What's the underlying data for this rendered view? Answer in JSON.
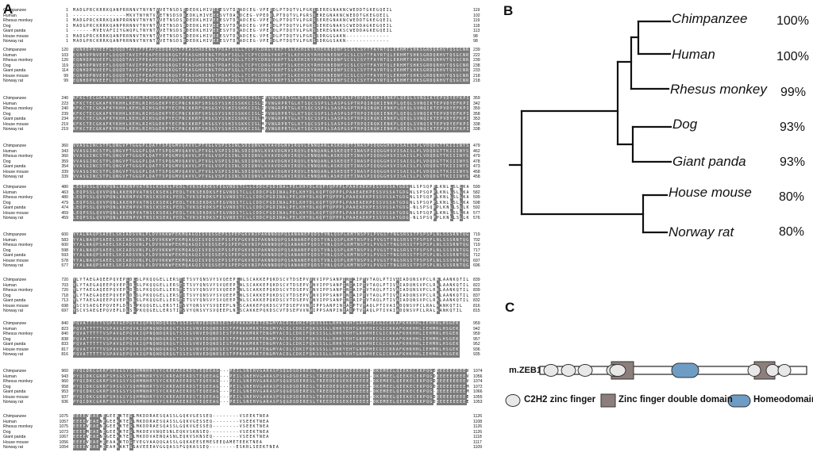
{
  "panels": {
    "a": "A",
    "b": "B",
    "c": "C"
  },
  "alignment": {
    "species": [
      "Chimpanzee",
      "Human",
      "Rhesus monkey",
      "Dog",
      "Giant panda",
      "House mouse",
      "Norway rat"
    ],
    "blocks": [
      {
        "starts": [
          "1",
          "1",
          "1",
          "1",
          "1",
          "1",
          "1"
        ],
        "ends": [
          "119",
          "102",
          "119",
          "118",
          "113",
          "98",
          "98"
        ],
        "seq": [
          "MADGPRCKRRKQANPRRNNVTNYNTVVETNSDSDDEDKLHIVEEESVTDAADCEG-VPEDDLPTDQTVLPGRSSEREGNAKNCWEDDTGKEGQEIL",
          "----------------MKVTNYNTVVETNSDSDDEDKLHIVEEESVTDAADCEG-VPEDDLPTDQTVLPGRSSEREGNAKNCWEDDTGKEGQEIL",
          "MADGPRCKRRKQANPRRNNVTNYNTVVETNSDSDDEDKLHIVEEESVTDAADCEG-VPEDDLPTDQTVLPGRSSEREGNAKNCWEDDTGKEGQEIL",
          "MADGPRCKRRKQANPRRNNVTNYNTVVETNSDSDDEDKLHIVEEESVTDAADCEG-VPEDDLPTDQTVLPGRSSEREGNAKSCWEDDAGKEGQEIL",
          "------MVEVAFIIYGWQPLTNYNTVVETNSDSDDEDKLHIVEEESVTDAADCEG-VPEDDLPTDQTVLPGRSSEREGNAKSCWEDDAGKEGQEIL",
          "MADGPRCKRRKQANPRRNNVTNYNTVVETNSDSDDEDKLHIVEEESVTDAADCEG-VPEDDLPTDQTVLPGRSSDRGGGAKN-------------",
          "MADGPRCKRRKQANPRRNNVTNYNTVVETNSDSDDEDKLHIVEEESVTDAADCEG-VPEDDLPTDQTVLPGRSSDRGGSAKN-------------"
        ]
      },
      {
        "starts": [
          "120",
          "103",
          "120",
          "119",
          "114",
          "99",
          "99"
        ],
        "ends": [
          "239",
          "222",
          "239",
          "238",
          "233",
          "218",
          "218"
        ],
        "seq": [
          "EQNHDPNVEEFLQQQDTAVIFPEAPEEDQRQGTPEASGHDENGTPDAFSQLLTCPYCDRGYKRFTSLKEHIKYRHEKNEDNFSCSLCSYTFAYRTQLERHMTSHKSGRDQRHVTQSGCNR",
          "EQNHDPNVEEFLQQQDTAVIFPEAPEEDQRQGTPEASGHDENGTPDAFSQLLTCPYCDRGYKRFTSLKEHIKYRHEKNEDNFSCSLCSYTFAYRTQLERHMTSHKSGRDQRHVTQSGCNR",
          "EQNHDPNVEEFLQQQDTAVIFPEAPEEDQRQGTPEASGHDENGTPDAFSQLLTCPYCDRGYKRFTSLKEHIKYRHEKNEDNFSCSLCSYTFAYRTQLERHMTSHKSGRDQRHVTQSGCNR",
          "EQNHDPNVEEFLQQQDTAVIFPEAPEEDQRQGTPEASGHDENGTPDAFSQLLTCPYCDRGYKRFTSLKEHIKYRHEKNEDNFSCSLCSYTFAYRTQLERHMTSHKSGRDQRHVTQSGCNR",
          "EQNHDPNVEEFLQQQDTAVIFPEAPEEDQRQGTPEASGHDENGTPDAFSQLLTCPYCDRGYKRFTSLKEHIKYRHEKNEDNFSCSLCSYTFAYRTQLERHMTSHKSGRDQRHVTQSGCNR",
          "EQNHDPNVEEFLQQQDTAVIFPEAPEEDQRQGTPEASGHDENGTPDAFSQLLTCPYCDRGYKRFTSLKEHIKYRHEKNEDNFSCSLCSYTFAYRTQLERHMTSHKSGRDQRHVTQSGCNR",
          "EQNHDPNVEEFLQQQDTAVIFPEAPEEDQRQGTPEASGHDENGTPDAFSQLLTCPYCDRGYKRFTSLKEHIKYRHEKNEDNFSCSLCSYTFAYRTQLERHMTSHKSGRDQRHVTQSGCNR"
        ]
      },
      {
        "starts": [
          "240",
          "223",
          "240",
          "239",
          "234",
          "219",
          "219"
        ],
        "ends": [
          "359",
          "342",
          "359",
          "358",
          "353",
          "338",
          "338"
        ],
        "seq": [
          "KFKCTECGKAFKYKHHLKEHLRIHSGEKPYECPNCKKRFSHSGSYSSHISSKKCISLIPVNGRPRTGLKTSQCSSPSLSASPGSPTRPQIRQKIENKPLQEQLSVNQIKTEPVDYEFKPI",
          "KFKCTECGKAFKYKHHLKEHLRIHSGEKPYECPNCKKRFSHSGSYSSHISSKKCISLIPVNGRPRTGLKTSQCSSPSLSASPGSPTRPQIRQKIENKPLQEQLSVNQIKTEPVDYEFKPI",
          "KFKCTECGKAFKYKHHLKEHLRIHSGEKPYECPNCKKRFSHSGSYSSHISSKKCISLIPVNGRPRTGLKTSQCSSPSLSASPGSPTRPQIRQKIENKPLQEQLSVNQIKTEPVDYEFKPI",
          "KFKCTECGKAFKYKHHLKEHLRIHSGEKPYECPNCKKRFSHSGSYSSHISSKKCISLIPVNGRPRTGLKTSQCSSPSLSASPGSPTRPQIRQKIENKPLQEQLSVNQIKTEPVDYEFKPI",
          "KFKCTECGKAFKYKHHLKEHLRIHSGEKPYECPNCKKRFSHSGSYSSHISSKKCISLMPVNGRPRTGLKTSQCSSPSLSASPGSPTRPQIRQKIENKPLQEQLSVNQIKTEPVDYEFKPI",
          "KFKCTECGKAFKYKHHLKEHLRIHSGEKPYECPNCKKRFSHSGSYSSHISSKKCISLMPVNGRPRTGLKTSQCSSPSLSASPGSPTRPQIRQKIENKPLQEQLSVNQIKTEPVDYEFKPI",
          "KFKCTECGKAFKYKHHLKEHLRIHSGEKPYECPNCKKRFSHSGSYSSHISSKKCISLMPVNGRPRTGLKTSQCSSPSLSASPGSPTRPQIRQKIENKPLQEQLSVNQIKTEPVDYEFKPI"
        ]
      },
      {
        "starts": [
          "360",
          "343",
          "360",
          "359",
          "354",
          "339",
          "339"
        ],
        "ends": [
          "479",
          "462",
          "479",
          "478",
          "473",
          "458",
          "458"
        ],
        "seq": [
          "VVASGINCSTPLQNGVFTGGGPLQATTSPQGMVQAVVLPTVGLVSPISINLSDIQNVLKVAVDGNVIRQVLENNQANLASKEQETINASPIQQGGHSVISAISLPLVDQDGTTKIIINYS",
          "VVASGINCSTPLQNGVFTGGGPLQATTSPQGMVQAVVLPTVGLVSPISINLSDIQNVLKVAVDGNVIRQVLENNQANLASKEQETINASPIQQGGHSVISAISLPLVDQDGTTKIIINYS",
          "VVASGINCSTPLQNGVFTGGGPLQATTSPQGMVQAVVLPTVGLVSPISINLSDIQNVLKVAVDGNVIRQVLENNQANLASKEQETINASPIQQGGHSVISAISLPLVDQDGTTKIIINYS",
          "VVASGINCSTPLQNGVFTGGGPLQATTSPQGMVQAVVLPTVGLVSPISINLSDIQNVLKVAVDGNVIRQVLENNQANLASKEQETINASPIQQGGHSVISAISLPLVDQDGTTKIIINYS",
          "VVASGINCSTPLQNGVFTGGGPLQATTSPQGMVQAVVLPTVGLVSPISINLSDIQNVLKVAVDGNVIRQVLENNQANLASKEQETINASPIQQGGHSVISAISLPLVDQDGTTKIIINYS",
          "VVASGINCSTPLQNGVFTGGGPLQATTSPQGMVQAVVLPTVGLVSPISINLSDIQNVLKVAVDGNVIRQVLENNQANLASKEQETINASPIQQGGHSVISAISLPLVDQDGTTKIIINYS",
          "VVASGINCSTPLQNGVFTGGGPLQATTSPQGMVQAVVLPTVGLVSPISINLSDIQNVLKVAVDGNVIRQVLENNQANLASKEQETINASPIQQGGHSVISAISLPLVDQDGTTKIIINYS"
        ]
      },
      {
        "starts": [
          "480",
          "463",
          "480",
          "479",
          "474",
          "459",
          "459"
        ],
        "ends": [
          "599",
          "582",
          "599",
          "598",
          "592",
          "577",
          "576"
        ],
        "seq": [
          "LEQPSSLQVVPQNLKKENPVATNSCKSEKLPEDLTVKSEKDKSFEGVNDSTCLLCDDCPGDINALPELKHYDLKQPTQPPPLPAAEAEKPESSVSSATGDGNLSPSQPPLKNLLSLLKA",
          "LEQPSSLQVVPQNLKKENPVATNSCKSEKLPEDLTVKSEKDKSFEGVNDSTCLLCDDCPGDINALPELKHYDLKQPTQPPPLPAAEAEKPESSVSSATGDGNLSPSQPPLKNLLSLLKA",
          "LEQPSSLQVVPQNLKKENPVATNSCKSEKLPEDLTVKSEKDKSFEGVNDSTCLLCDDCPGDINALPELKHYDLKQPTQPPPLPAAEAEKPESSVSSATGDGNLSPSQPPLKNLLSLLKA",
          "LEQPSSLQVVPQNLKKENPVATNSCKSEKLPEDLTVKSEKDKSFEGVNDSTCLLCDDCPGDINALPELKHYDLKQPTQPPPLPAAEAEKPESSVSSATGDGNLSPSQPPLKNLLSLLKA",
          "LEQPSSLQVVPQNLKKENPVATNSCKSEKLPEDLTVKSEKDKSFEGVNDSTCLLCDDCPGDINALPELKHYDLKQPTQPPPLPAAEAEKPESSVSSATGDG-NLSPSQPPLKNLLSLLK",
          "LEQPSSLQVVPQNLKKENPVATNSCKSEKLPEDLTVKSEKDKSFEGVNDSTCLLCDDCPGDINALPELKHYDLKQPTQPPPLPAAEAEKPESSVSSATGDGNLSPSQPPLKNLLSLLKA",
          "LEQPSSLQVVPQNLKKENPVATNSCKSEKLPEDLTVKSEKDKSFEGVNDSTCLLCDDCPGDINALPELKHYDLKQPTQPPPLPAAEAEKPESSVSSATGDG-NLSPSQPPLKNLLSLLK"
        ]
      },
      {
        "starts": [
          "600",
          "583",
          "600",
          "598",
          "593",
          "578",
          "577"
        ],
        "ends": [
          "719",
          "702",
          "719",
          "717",
          "712",
          "697",
          "696"
        ],
        "seq": [
          "YYALNAQPSAEELSKIADSVNLPLDVVKKWFEKMQAGQISVQSSEPSSPEPGKVNIPAKNNDQPQSANANEPQDSTVNLQSPLKMTNSPVLPVGSTTNGSRSSTPSPSPLNLSSSRNTQG",
          "YYALNAQPSAEELSKIADSVNLPLDVVKKWFEKMQAGQISVQSSEPSSPEPGKVNIPAKNNDQPQSANANEPQDSTVNLQSPLKMTNSPVLPVGSTTNGSRSSTPSPSPLNLSSSRNTQG",
          "YYALNAQPSAEELSKIADSVNLPLDVVKKWFEKMQAGQISVQSSEPSSPEPGKVNIPAKNNDQPQSANANEPQDSTVNLQSPLKMTNSPVLPVGSTTNGSRSSTPSPSPLNLSSSRNTQG",
          "YYALNAQPSAEELSKIADSVNLPLDVVKKWFEKMQAGQISVQSSEPSSPEPGKVNIPAKNNDQPQSANANEPQDSTVNLQSPLKMTNSPVLPVGSTTNGSRSSTPSPSPLNLSSSRNTQG",
          "YYALNAQPSAEELSKIADSVNLPLDVVKKWFEKMQAGQISVQSSEPSSPEPGKVNIPAKNNDQPQSANANEPQDSTVNLQSPLKMTNSPVLPVGSTTNGSRSSTPSPSPLNLSSSRNTQG",
          "YYALNAQPSAEELSKIADSVNLPLDVVKKWFEKMQAGQISVQSSEPSSPEPGKVNIPAKNNDQPQSANANEPQDSTVNLQSPLKMTNSPVLPVGSTTNGSRSSTPSPSPLNLSSSRNTQG",
          "YYALNAQPSAEELSKIADSVNLPLDVVKKWFEKMQAGQISVQSSEPSSPEPGKVNIPAKNNDQPQSANANEPQDSTVNLQSPLKMTNSPVLPVGSTTNGSRSSTPSPSPLNLSSSRNTQG"
        ]
      },
      {
        "starts": [
          "720",
          "703",
          "720",
          "718",
          "713",
          "698",
          "697"
        ],
        "ends": [
          "839",
          "822",
          "839",
          "837",
          "832",
          "816",
          "815"
        ],
        "seq": [
          "YLYTAEGAQEEPQVEPLDLSLPKQQGELLERSTITSVYQNSVYSVQEEPLNLSCAKKEPQKDSCVTDSEPVVNVIPPSANPINIAIPTVTAQLPTIVAIADQNSVPCLRALAANKQTIL",
          "YLYTAEGAQEEPQVEPLDLSLPKQQGELLERSTITSVYQNSVYSVQEEPLNLSCAKKEPQKDSCVTDSEPVVNVIPPSANPINIAIPTVTAQLPTIVAIADQNSVPCLRALAANKQTIL",
          "YLYTAEGAQEEPQVEPLDLSLPKQQGELLERSTITSVYQNSVYSVQEEPLNLSCAKKEPQKDSCVTDSEPVVNVIPPSANPINIAIPTVTAQLPTIVAIADQNSVPCLRALAANKQTIL",
          "YLYTAEGAQEEPQVEPLDLSLPKQQGELLERSTITSVYQNSVYSVQEEPLNLSCAKKEPQKDSCVTDSEPVVNVIPPSANPINIAIPTVTAQLPTIVAIADQNSVPCLRALAANKQTIL",
          "YLYTAEGAQEEPQVEPLDLSLPKQQGELLERSTITSVYQNSVYSVQEEPLNLSCAKKEPQKDSCVTDSEPVVNVIPPSANPINIAIPTVTAQLPTIVAIADQNSVPCLRALAANKQTIL",
          "YSCVSAEGEPQVEPLDLSLPKQQGELLERSTITSVYQNSVYSVQEEPLNLSCAKKEPQKDSCVTDSEPVVNVIPPSANPINIAIPTVTAQLPTIVAIADQNSVPCLRALAANKQTIL",
          "YSCVSAEGEPQVEPLDLSLPKQQGELLERSTITSVYQNSVYSVQEEPLNLSCAKKEPQKDSCVTDSEPVVNVIPPSANPINIAIPTVTAQLPTIVAIADQNSVPCLRALAANKQTIL"
        ]
      },
      {
        "starts": [
          "840",
          "823",
          "840",
          "838",
          "833",
          "817",
          "816"
        ],
        "ends": [
          "959",
          "942",
          "959",
          "957",
          "952",
          "936",
          "935"
        ],
        "seq": [
          "PQVATTTTTVSPAVGEPQVKIQPNQNDQRQGTSSEGVNVEDQNDSESTPPKKKMRRTENGMYACDLCDKIFQKSSSLLRHKYEHTGKRPHECGICKKAFKHKHHLIEHMRLHSGEK",
          "PQVATTTTTVSPAVGEPQVKIQPNQNDQRQGTSSEGVNVEDQNDSESTPPKKKMRRTENGMYACDLCDKIFQKSSSLLRHKYEHTGKRPHECGICKKAFKHKHHLIEHMRLHSGEK",
          "PQVATTTTTVSPAVGEPQVKIQPNQNDQRQGTSSEGVNVEDQNDSESTPPKKKMRRTENGMYACDLCDKIFQKSSSLLRHKYEHTGKRPHECGICKKAFKHKHHLIEHMRLHSGEK",
          "PQVATTTTTVSPAVGEPQVKIQPNQNDQRQGTSSEGVNVEDQNDSESTPPKKKMRRTENGMYACDLCDKIFQKSSSLLRHKYEHTGKRPHECGICKKAFKHKHHLIEHMRLHSGEK",
          "PQVATTTTTVSPAVGEPQVKIQPNQNDQRQGTSSEGVNVEDQNDSESTPPKKKMRRTENGMYACDLCDKIFQKSSSLLRHKYEHTGKRPHECGICKKAFKHKHHLIEHMRLHSGEK",
          "PQVATTTTTVSPAVGEPQVKIQPNQNDQRQGTSSEGVNVEDQNDSESTPPKKKMRRTENGMYACDLCDKIFQKSSSLLRHKYEHTGKRPHECGICKKAFKHKHHLIEHMRLHSGEK",
          "PQVATTTTTVSPAVGEPQVKIQPNQNDQRQGTSSEGVNVEDQNDSESTPPKKKMRRTENGMYACDLCDKIFQKSSSLLRHKYEHTGKRPHECGICKKAFKHKHHLIEHMRLHSGEK"
        ]
      },
      {
        "starts": [
          "960",
          "943",
          "960",
          "958",
          "953",
          "937",
          "936"
        ],
        "ends": [
          "1074",
          "1056",
          "1074",
          "1072",
          "1066",
          "1055",
          "1053"
        ],
        "seq": [
          "PYQCDKCGKRFSHSGSYSQHMNHRYSYCKREAEERDSTEQEEAG---PEILSNEHVGARASPSQGDSDERESLTREEDEDSEKEEEEEE-DKEMEELQEEKECEKPQGDEEEEEEEEEV",
          "PYQCDKCGKRFSHSGSYSQHMNHRYSYCKREAEERDSTEQEEAG---PEILSNEHVGARASPSQGDSDERESLTREEDEDSEKEEEEEE-DKEMEELQEEKECEKPQGDEEEEEEEEEV",
          "PYQCDKCGKRFSHSGSYSQHMNHRYSYCKREAEERDSTEQEEAG---PEILSNEHVGARASPSQGDSDERESLTREEDEDSEKEEEEEE-DKEMEELQEEKECEKPQGDEEEEEEEEEV",
          "PYQCDKCGKRFSHSGSYSQHMNHRYSYCKREAEERDSTEQEEAG---PEILSNEHVGARASPSQGDSDERESLTREEDEDSEKEEEEEE-DKEMEELQEEKECEKPQGDEEEEEEEEEM",
          "PYQCDKCGKRFSHSGSYSQHMNHRYSYCKREAEERDSTEQEEAG---PEILSNEHVGARASPSQGDSDERESLTREEDEDSEKEEEEEE-DKEMEELQEEKECEKPQG-EEEEEEEEEM",
          "PYQCDKCGKRFSHSGSYSQHMNHRYSYCKREAEERDSTEQEEAG---PEILSNEHVGARASPSQGDSDERESLTREEDEDSEKEEEEEE-DKEMEELQEEKECEKPQGDEEEEEEEEEE",
          "PYQCDKCGKRFSHSGSYSQHMNHRYSYCKREAEERDSTEQEEAG---PEILSNEHVGARASPSQGDSDERESLTREEDEDSEKEEEEEE-DKEMEELQEEKECEKPQGDEEEEEEEEEE"
        ]
      },
      {
        "starts": [
          "1075",
          "1057",
          "1075",
          "1073",
          "1067",
          "1056",
          "1054"
        ],
        "ends": [
          "1126",
          "1108",
          "1126",
          "1126",
          "1118",
          "1117",
          "1109"
        ],
        "seq": [
          "EEEEVEAENEGEEAKTEGLMKDDRAESQASSLGQKVGESSEQ--------VSEEKTNEA",
          "EEEEVEAENEGEEAKTEGLMKDDRAESQASSLGQKVGESSEQ--------VSEEKTNEA",
          "EEEEVEAENEGEEAKTEGLMKDDRAESQASSLGQKVGESSEQ--------VSEEKTNEA",
          "EEEEMEAENEGEEAKTEGLMKDEVVNQESNLEQKVSKNSEQ---------VSEEKTNEA",
          "EEEEVEAENEGEEAKTEGLMKDDVAENQASNLEQKVSKNSEQ--------VSEEKTNEA",
          "EEEEVEAEHEEAAAKTDGTVEGVAAQQGASSLGQKAEESEMESEEQAMETEEKTNEA",
          "EEEEVEAEHEEAHAAKTGGAVEEEAVGGQASSFGQKASSEQ--------ESKRLSEEKTNEA"
        ]
      }
    ]
  },
  "tree": {
    "taxa": [
      "Chimpanzee",
      "Human",
      "Rhesus monkey",
      "Dog",
      "Giant panda",
      "House mouse",
      "Norway rat"
    ],
    "identity": [
      "100%",
      "100%",
      "99%",
      "93%",
      "93%",
      "80%",
      "80%"
    ]
  },
  "domain": {
    "protein": "m.ZEB1",
    "legend": [
      "C2H2 zinc finger",
      "Zinc finger double domain",
      "Homeodomain"
    ],
    "colors": {
      "c2h2": "#e8e8e8",
      "double": "#8c7f7b",
      "homeo": "#6e9cc4"
    }
  }
}
